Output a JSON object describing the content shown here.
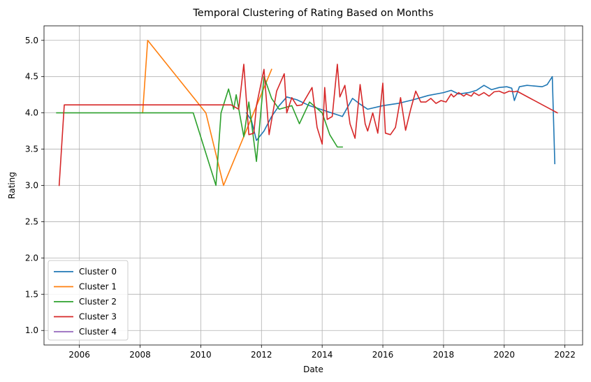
{
  "chart_data": {
    "type": "line",
    "title": "Temporal Clustering of Rating Based on Months",
    "xlabel": "Date",
    "ylabel": "Rating",
    "xlim": [
      "2004-11-01",
      "2022-08-01"
    ],
    "ylim": [
      0.8,
      5.2
    ],
    "x_ticks": [
      "2006",
      "2008",
      "2010",
      "2012",
      "2014",
      "2016",
      "2018",
      "2020",
      "2022"
    ],
    "y_ticks": [
      "1.0",
      "1.5",
      "2.0",
      "2.5",
      "3.0",
      "3.5",
      "4.0",
      "4.5",
      "5.0"
    ],
    "grid": true,
    "legend_position": "lower-left",
    "series": [
      {
        "name": "Cluster 0",
        "color": "#1f77b4",
        "points": [
          [
            "2011-07-01",
            4.0
          ],
          [
            "2011-09-01",
            3.9
          ],
          [
            "2011-11-01",
            3.62
          ],
          [
            "2012-02-01",
            3.75
          ],
          [
            "2012-05-01",
            3.95
          ],
          [
            "2012-08-01",
            4.1
          ],
          [
            "2012-11-01",
            4.22
          ],
          [
            "2013-03-01",
            4.18
          ],
          [
            "2013-08-01",
            4.1
          ],
          [
            "2014-03-01",
            4.02
          ],
          [
            "2014-09-01",
            3.95
          ],
          [
            "2015-01-01",
            4.2
          ],
          [
            "2015-04-01",
            4.12
          ],
          [
            "2015-07-01",
            4.05
          ],
          [
            "2016-01-01",
            4.1
          ],
          [
            "2016-07-01",
            4.13
          ],
          [
            "2017-01-01",
            4.18
          ],
          [
            "2017-07-01",
            4.24
          ],
          [
            "2018-01-01",
            4.28
          ],
          [
            "2018-04-01",
            4.31
          ],
          [
            "2018-07-01",
            4.26
          ],
          [
            "2018-11-01",
            4.28
          ],
          [
            "2019-02-01",
            4.31
          ],
          [
            "2019-05-01",
            4.38
          ],
          [
            "2019-08-01",
            4.32
          ],
          [
            "2019-11-01",
            4.35
          ],
          [
            "2020-02-01",
            4.36
          ],
          [
            "2020-04-01",
            4.34
          ],
          [
            "2020-05-01",
            4.17
          ],
          [
            "2020-07-01",
            4.36
          ],
          [
            "2020-10-01",
            4.38
          ],
          [
            "2021-01-01",
            4.37
          ],
          [
            "2021-04-01",
            4.36
          ],
          [
            "2021-06-01",
            4.39
          ],
          [
            "2021-08-01",
            4.5
          ],
          [
            "2021-09-01",
            3.3
          ]
        ]
      },
      {
        "name": "Cluster 1",
        "color": "#ff7f0e",
        "points": [
          [
            "2008-02-01",
            4.0
          ],
          [
            "2008-04-01",
            5.0
          ],
          [
            "2010-03-01",
            4.0
          ],
          [
            "2010-10-01",
            3.0
          ],
          [
            "2012-05-01",
            4.6
          ]
        ]
      },
      {
        "name": "Cluster 2",
        "color": "#2ca02c",
        "points": [
          [
            "2005-04-01",
            4.0
          ],
          [
            "2009-10-01",
            4.0
          ],
          [
            "2010-07-01",
            3.0
          ],
          [
            "2010-09-01",
            4.0
          ],
          [
            "2010-12-01",
            4.33
          ],
          [
            "2011-02-01",
            4.05
          ],
          [
            "2011-03-01",
            4.25
          ],
          [
            "2011-06-01",
            3.67
          ],
          [
            "2011-08-01",
            4.15
          ],
          [
            "2011-11-01",
            3.33
          ],
          [
            "2012-02-01",
            4.5
          ],
          [
            "2012-05-01",
            4.2
          ],
          [
            "2012-08-01",
            4.05
          ],
          [
            "2013-01-01",
            4.1
          ],
          [
            "2013-04-01",
            3.85
          ],
          [
            "2013-08-01",
            4.15
          ],
          [
            "2014-01-01",
            4.0
          ],
          [
            "2014-04-01",
            3.7
          ],
          [
            "2014-07-01",
            3.53
          ],
          [
            "2014-09-01",
            3.53
          ]
        ]
      },
      {
        "name": "Cluster 3",
        "color": "#d62728",
        "points": [
          [
            "2005-05-01",
            3.0
          ],
          [
            "2005-07-01",
            4.11
          ],
          [
            "2011-01-01",
            4.11
          ],
          [
            "2011-04-01",
            4.05
          ],
          [
            "2011-06-01",
            4.67
          ],
          [
            "2011-08-01",
            3.7
          ],
          [
            "2011-10-01",
            3.72
          ],
          [
            "2011-11-01",
            4.1
          ],
          [
            "2012-02-01",
            4.6
          ],
          [
            "2012-04-01",
            3.7
          ],
          [
            "2012-07-01",
            4.3
          ],
          [
            "2012-10-01",
            4.54
          ],
          [
            "2012-11-01",
            4.0
          ],
          [
            "2013-01-01",
            4.21
          ],
          [
            "2013-03-01",
            4.1
          ],
          [
            "2013-05-01",
            4.11
          ],
          [
            "2013-09-01",
            4.35
          ],
          [
            "2013-11-01",
            3.8
          ],
          [
            "2014-01-01",
            3.57
          ],
          [
            "2014-02-01",
            4.35
          ],
          [
            "2014-03-01",
            3.91
          ],
          [
            "2014-05-01",
            3.95
          ],
          [
            "2014-07-01",
            4.67
          ],
          [
            "2014-08-01",
            4.22
          ],
          [
            "2014-10-01",
            4.38
          ],
          [
            "2014-12-01",
            3.85
          ],
          [
            "2015-02-01",
            3.65
          ],
          [
            "2015-04-01",
            4.39
          ],
          [
            "2015-06-01",
            3.85
          ],
          [
            "2015-07-01",
            3.75
          ],
          [
            "2015-09-01",
            4.0
          ],
          [
            "2015-11-01",
            3.72
          ],
          [
            "2016-01-01",
            4.41
          ],
          [
            "2016-02-01",
            3.72
          ],
          [
            "2016-04-01",
            3.7
          ],
          [
            "2016-06-01",
            3.8
          ],
          [
            "2016-08-01",
            4.21
          ],
          [
            "2016-10-01",
            3.76
          ],
          [
            "2016-12-01",
            4.05
          ],
          [
            "2017-02-01",
            4.3
          ],
          [
            "2017-04-01",
            4.15
          ],
          [
            "2017-06-01",
            4.15
          ],
          [
            "2017-08-01",
            4.2
          ],
          [
            "2017-10-01",
            4.13
          ],
          [
            "2017-12-01",
            4.17
          ],
          [
            "2018-02-01",
            4.15
          ],
          [
            "2018-04-01",
            4.26
          ],
          [
            "2018-05-01",
            4.22
          ],
          [
            "2018-07-01",
            4.28
          ],
          [
            "2018-09-01",
            4.23
          ],
          [
            "2018-10-01",
            4.26
          ],
          [
            "2018-12-01",
            4.23
          ],
          [
            "2019-01-01",
            4.28
          ],
          [
            "2019-03-01",
            4.24
          ],
          [
            "2019-05-01",
            4.28
          ],
          [
            "2019-07-01",
            4.23
          ],
          [
            "2019-09-01",
            4.29
          ],
          [
            "2019-11-01",
            4.3
          ],
          [
            "2020-01-01",
            4.27
          ],
          [
            "2020-03-01",
            4.3
          ],
          [
            "2020-05-01",
            4.29
          ],
          [
            "2020-06-01",
            4.3
          ],
          [
            "2021-10-01",
            4.0
          ]
        ]
      },
      {
        "name": "Cluster 4",
        "color": "#9467bd",
        "points": []
      }
    ]
  }
}
